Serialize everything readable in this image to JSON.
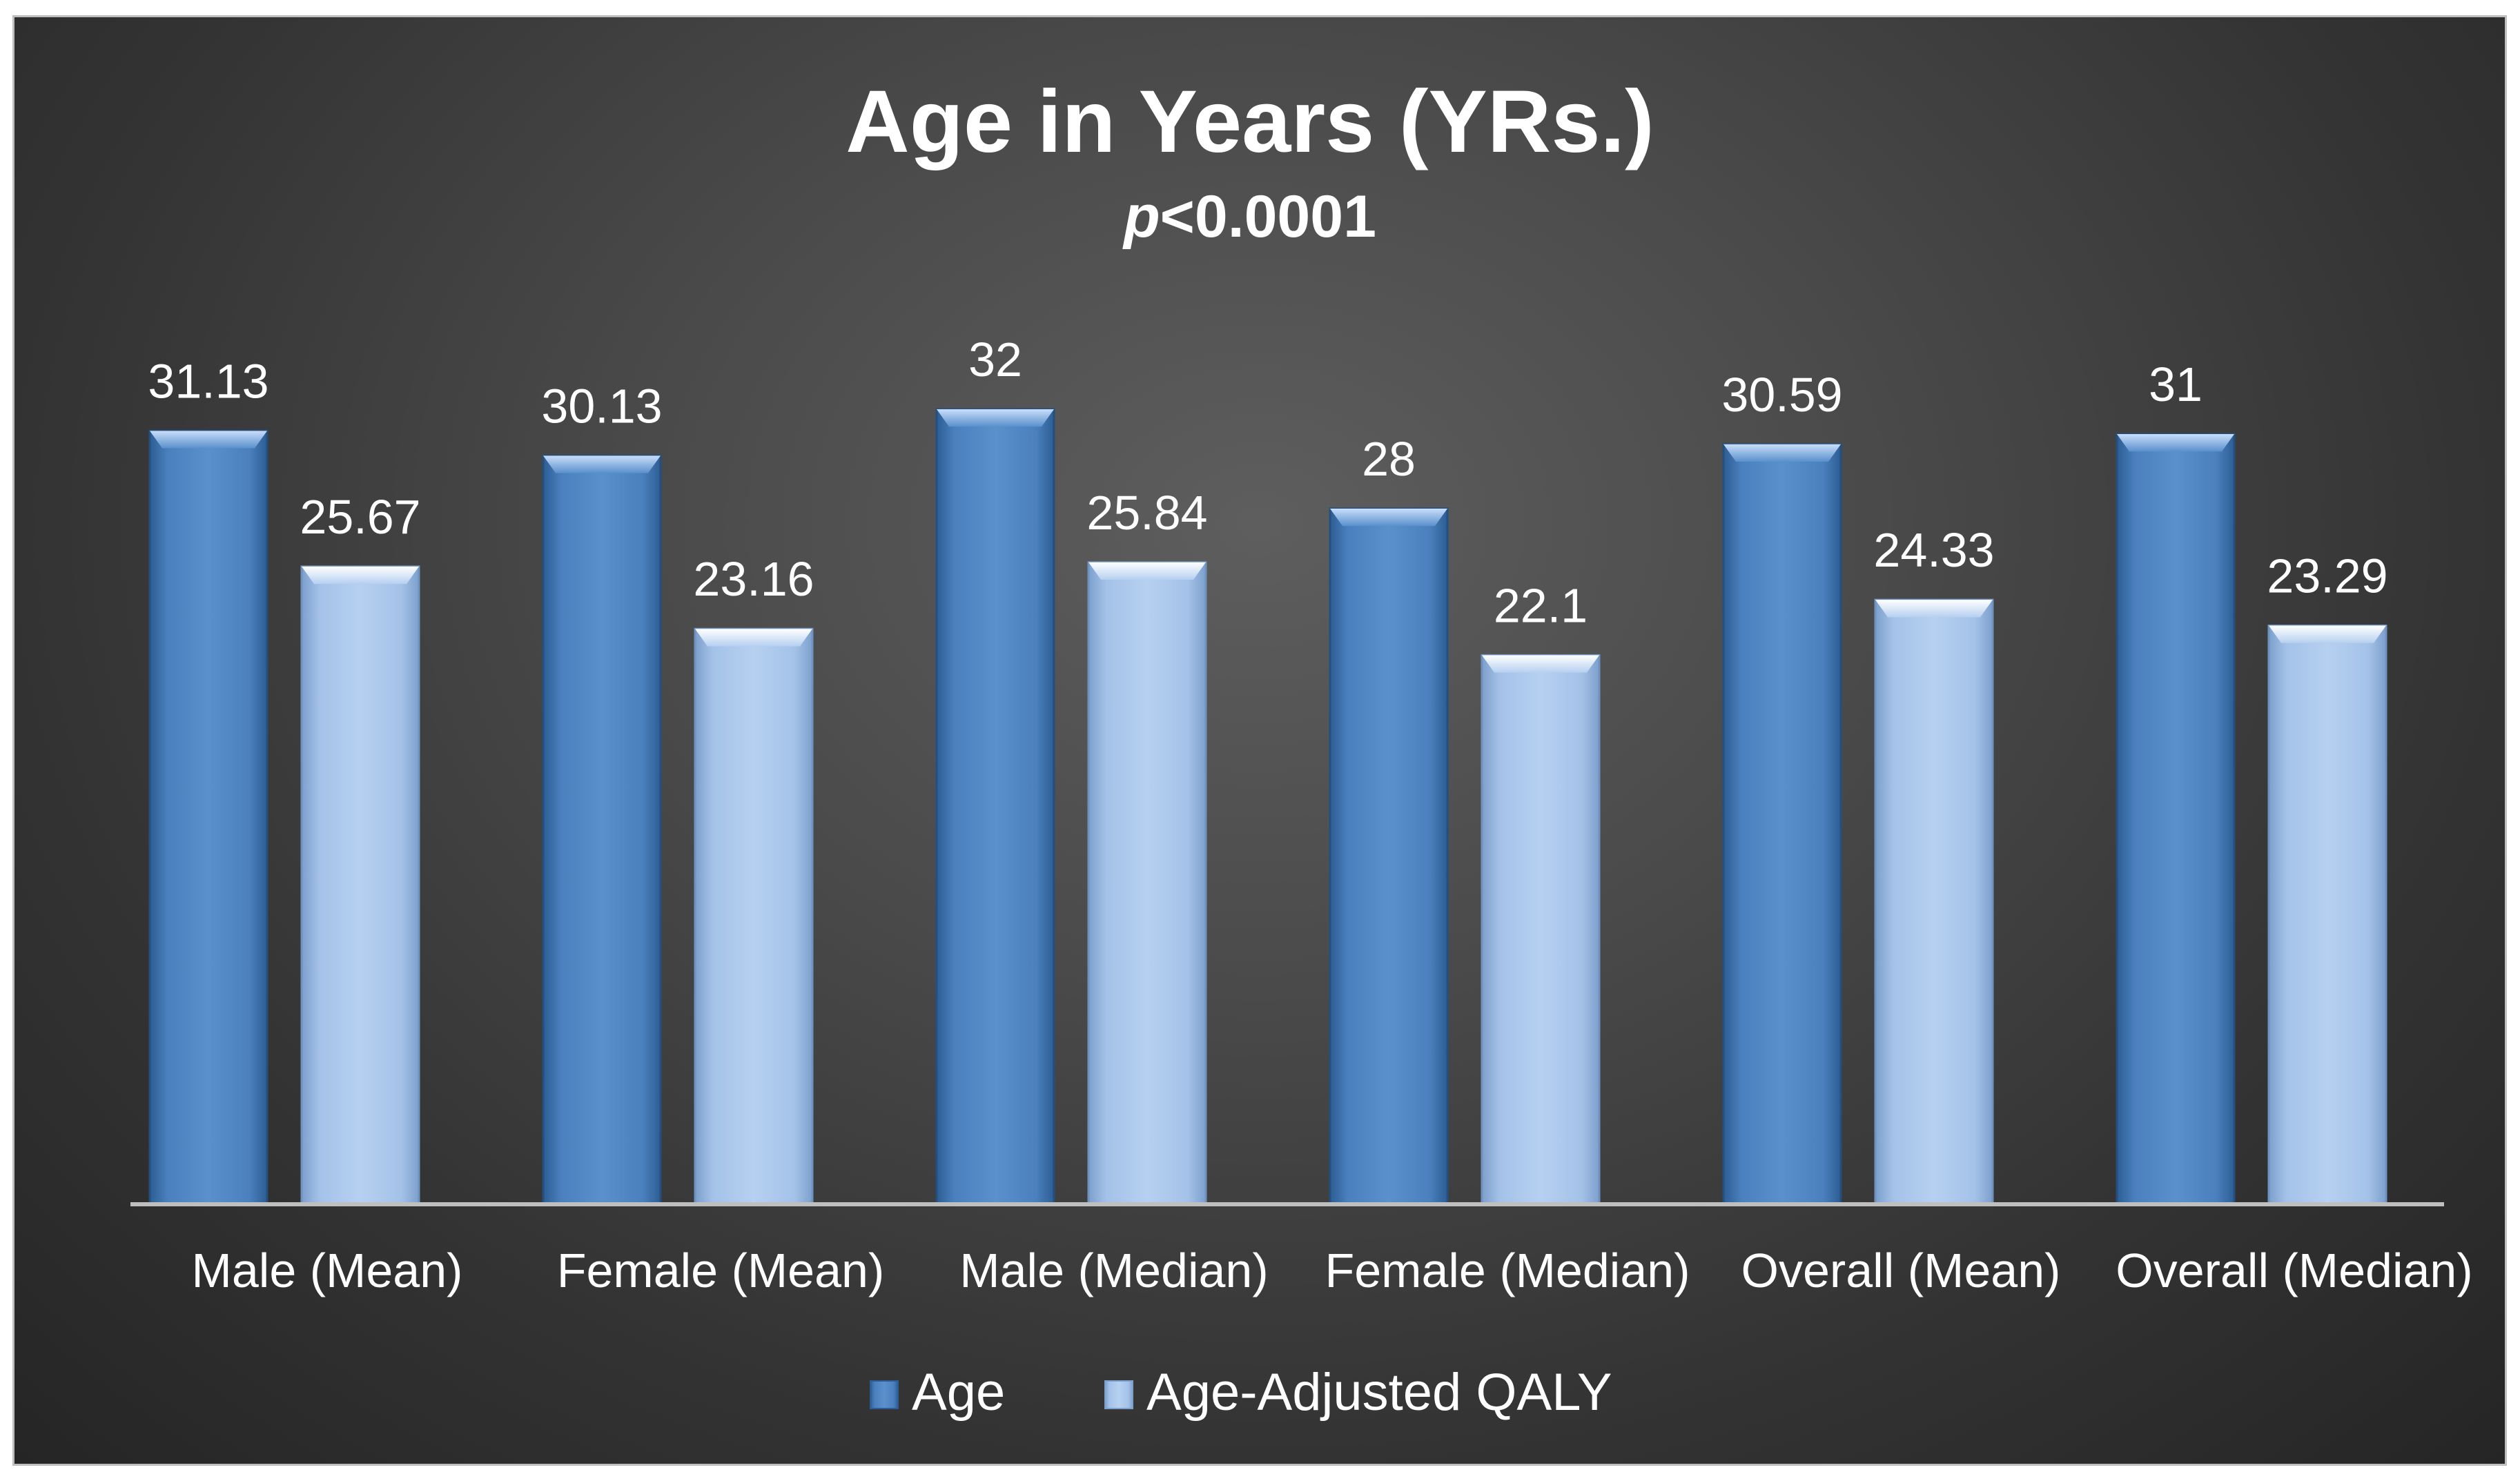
{
  "chart_data": {
    "type": "bar",
    "title": "Age in Years (YRs.)",
    "subtitle_italic": "p",
    "subtitle_rest": "<0.0001",
    "categories": [
      "Male (Mean)",
      "Female (Mean)",
      "Male (Median)",
      "Female (Median)",
      "Overall (Mean)",
      "Overall (Median)"
    ],
    "series": [
      {
        "name": "Age",
        "values": [
          31.13,
          30.13,
          32,
          28,
          30.59,
          31
        ],
        "color": "#4f86c3"
      },
      {
        "name": "Age-Adjusted QALY",
        "values": [
          25.67,
          23.16,
          25.84,
          22.1,
          24.33,
          23.29
        ],
        "color": "#a6c4ea"
      }
    ],
    "data_labels": [
      [
        "31.13",
        "30.13",
        "32",
        "28",
        "30.59",
        "31"
      ],
      [
        "25.67",
        "23.16",
        "25.84",
        "22.1",
        "24.33",
        "23.29"
      ]
    ],
    "ylim": [
      0,
      36
    ],
    "grid": false,
    "legend_position": "bottom"
  }
}
